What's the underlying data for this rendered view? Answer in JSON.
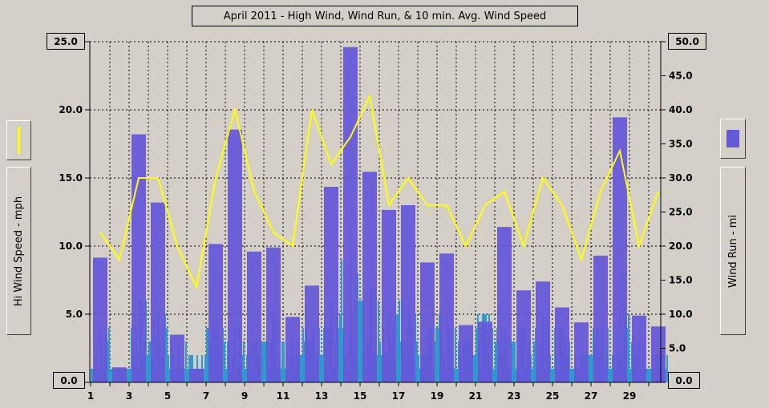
{
  "chart_data": {
    "type": "bar",
    "title": "April 2011 - High Wind, Wind Run, & 10 min. Avg. Wind Speed",
    "days": [
      1,
      2,
      3,
      4,
      5,
      6,
      7,
      8,
      9,
      10,
      11,
      12,
      13,
      14,
      15,
      16,
      17,
      18,
      19,
      20,
      21,
      22,
      23,
      24,
      25,
      26,
      27,
      28,
      29,
      30
    ],
    "x_tick_labels": [
      "1",
      "3",
      "5",
      "7",
      "9",
      "11",
      "13",
      "15",
      "17",
      "19",
      "21",
      "23",
      "25",
      "27",
      "29"
    ],
    "left_axis": {
      "label": "Hi Wind Speed - mph",
      "min": 0,
      "max": 25,
      "tick_labels": [
        "0.0",
        "5.0",
        "10.0",
        "15.0",
        "20.0",
        "25.0"
      ]
    },
    "right_axis": {
      "label": "Wind Run - mi",
      "min": 0,
      "max": 50,
      "tick_labels": [
        "0.0",
        "5.0",
        "10.0",
        "15.0",
        "20.0",
        "25.0",
        "30.0",
        "35.0",
        "40.0",
        "45.0",
        "50.0"
      ]
    },
    "grid": true,
    "series": [
      {
        "kind": "line",
        "axis": "left",
        "color": "#ffff00",
        "values": [
          11,
          9,
          15,
          15,
          10,
          7,
          15,
          20,
          14,
          11,
          10,
          20,
          16,
          18,
          21,
          13,
          15,
          13,
          13,
          10,
          13,
          14,
          10,
          15,
          13,
          9,
          14,
          17,
          10,
          14
        ]
      },
      {
        "kind": "bar",
        "axis": "right",
        "color": "#6659d9",
        "values": [
          18.3,
          2.2,
          36.4,
          26.4,
          7.0,
          2.0,
          20.3,
          37.1,
          19.2,
          19.8,
          9.6,
          14.2,
          28.7,
          49.2,
          30.9,
          25.3,
          26.0,
          17.6,
          18.9,
          8.4,
          8.9,
          22.8,
          13.5,
          14.8,
          11.0,
          8.8,
          18.6,
          38.9,
          9.8,
          8.2
        ]
      },
      {
        "kind": "bar-10min-avg",
        "axis": "left",
        "color": "#3399cc",
        "peaks": [
          4,
          1,
          6,
          5,
          3,
          2,
          5,
          4,
          3,
          5,
          3,
          4,
          6,
          9,
          7,
          5,
          6,
          4,
          5,
          3,
          5,
          4,
          4,
          5,
          4,
          2,
          4,
          8,
          3,
          2
        ]
      }
    ],
    "colors": {
      "plot_background": "#000000",
      "line": "#ffff00",
      "wind_run_bars": "#6659d9",
      "avg_speed_bars": "#3399cc"
    }
  }
}
